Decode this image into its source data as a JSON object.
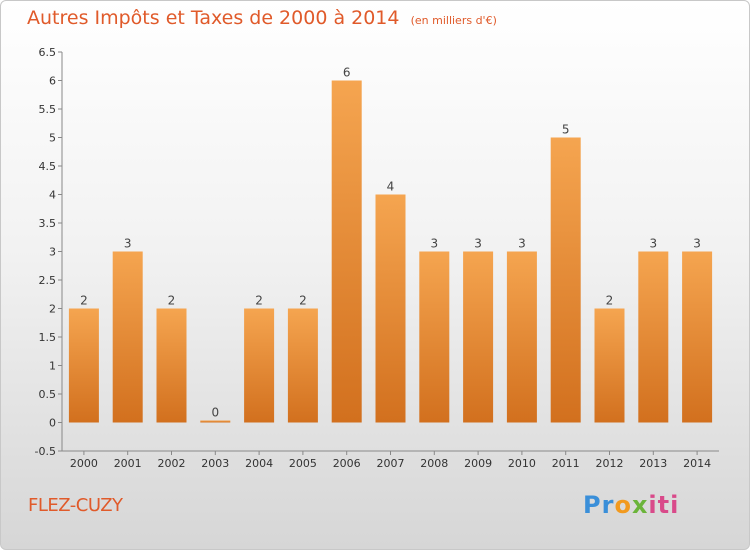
{
  "title": "Autres Impôts et Taxes de 2000 à 2014",
  "subtitle": "(en milliers d'€)",
  "town": "FLEZ-CUZY",
  "logo": {
    "text": "Proxiti"
  },
  "colors": {
    "bar_top": "#f5a550",
    "bar_bottom": "#d2701e",
    "title": "#e05a2a"
  },
  "chart_data": {
    "type": "bar",
    "categories": [
      "2000",
      "2001",
      "2002",
      "2003",
      "2004",
      "2005",
      "2006",
      "2007",
      "2008",
      "2009",
      "2010",
      "2011",
      "2012",
      "2013",
      "2014"
    ],
    "values": [
      2,
      3,
      2,
      0,
      2,
      2,
      6,
      4,
      3,
      3,
      3,
      5,
      2,
      3,
      3
    ],
    "data_labels": [
      "2",
      "3",
      "2",
      "0",
      "2",
      "2",
      "6",
      "4",
      "3",
      "3",
      "3",
      "5",
      "2",
      "3",
      "3"
    ],
    "yticks": [
      -0.5,
      0,
      0.5,
      1,
      1.5,
      2,
      2.5,
      3,
      3.5,
      4,
      4.5,
      5,
      5.5,
      6,
      6.5
    ],
    "ytick_labels": [
      "-0.5",
      "0",
      "0.5",
      "1",
      "1.5",
      "2",
      "2.5",
      "3",
      "3.5",
      "4",
      "4.5",
      "5",
      "5.5",
      "6",
      "6.5"
    ],
    "ylim": [
      -0.5,
      6.5
    ],
    "title": "Autres Impôts et Taxes de 2000 à 2014",
    "xlabel": "",
    "ylabel": "",
    "grid": false,
    "legend": "none"
  }
}
